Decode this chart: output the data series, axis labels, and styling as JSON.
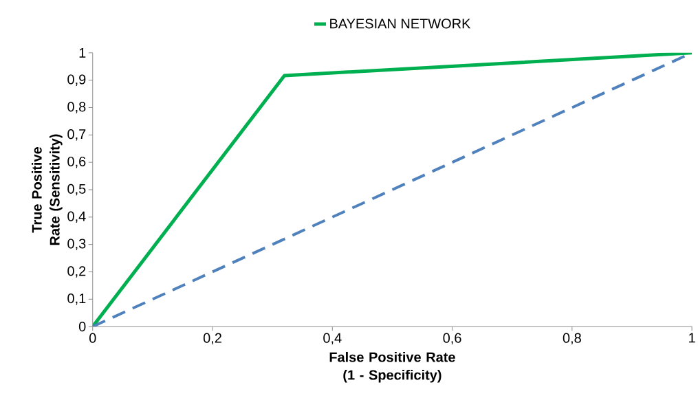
{
  "chart_data": {
    "type": "line",
    "xlabel": "False Positive Rate (1 - Specificity)",
    "ylabel": "True Positive Rate (Sensitivity)",
    "xlim": [
      0,
      1
    ],
    "ylim": [
      0,
      1
    ],
    "xticks": [
      0,
      {
        "value": 0.2,
        "label": "0,2"
      },
      {
        "value": 0.4,
        "label": "0,4"
      },
      {
        "value": 0.6,
        "label": "0,6"
      },
      {
        "value": 0.8,
        "label": "0,8"
      },
      1
    ],
    "yticks": [
      0,
      {
        "value": 0.1,
        "label": "0,1"
      },
      {
        "value": 0.2,
        "label": "0,2"
      },
      {
        "value": 0.3,
        "label": "0,3"
      },
      {
        "value": 0.4,
        "label": "0,4"
      },
      {
        "value": 0.5,
        "label": "0,5"
      },
      {
        "value": 0.6,
        "label": "0,6"
      },
      {
        "value": 0.7,
        "label": "0,7"
      },
      {
        "value": 0.8,
        "label": "0,8"
      },
      {
        "value": 0.9,
        "label": "0,9"
      },
      1
    ],
    "legend": "top",
    "series": [
      {
        "name": "BAYESIAN NETWORK",
        "color": "#00b050",
        "x": [
          0,
          0.32,
          0.96,
          1
        ],
        "values": [
          0,
          0.917,
          0.995,
          1
        ],
        "line_style": "solid"
      },
      {
        "color": "#4f81bd",
        "x": [
          0,
          1
        ],
        "values": [
          0,
          1
        ],
        "line_style": "dashed"
      }
    ]
  }
}
